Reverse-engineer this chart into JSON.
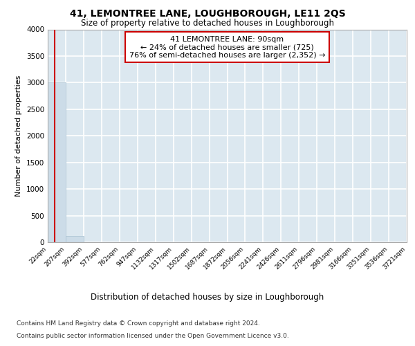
{
  "title1": "41, LEMONTREE LANE, LOUGHBOROUGH, LE11 2QS",
  "title2": "Size of property relative to detached houses in Loughborough",
  "xlabel": "Distribution of detached houses by size in Loughborough",
  "ylabel": "Number of detached properties",
  "bin_edges": [
    22,
    207,
    392,
    577,
    762,
    947,
    1132,
    1317,
    1502,
    1687,
    1872,
    2056,
    2241,
    2426,
    2611,
    2796,
    2981,
    3166,
    3351,
    3536,
    3721
  ],
  "bar_heights": [
    3000,
    120,
    5,
    2,
    1,
    1,
    1,
    0,
    0,
    0,
    0,
    0,
    0,
    0,
    0,
    0,
    0,
    0,
    0,
    0
  ],
  "bar_color": "#ccdce8",
  "bar_edgecolor": "#a8c0d0",
  "ylim": [
    0,
    4000
  ],
  "yticks": [
    0,
    500,
    1000,
    1500,
    2000,
    2500,
    3000,
    3500,
    4000
  ],
  "property_size": 90,
  "annotation_title": "41 LEMONTREE LANE: 90sqm",
  "annotation_line1": "← 24% of detached houses are smaller (725)",
  "annotation_line2": "76% of semi-detached houses are larger (2,352) →",
  "redline_color": "#cc0000",
  "annotation_box_color": "#cc0000",
  "background_color": "#dce8f0",
  "grid_color": "#ffffff",
  "footer1": "Contains HM Land Registry data © Crown copyright and database right 2024.",
  "footer2": "Contains public sector information licensed under the Open Government Licence v3.0."
}
